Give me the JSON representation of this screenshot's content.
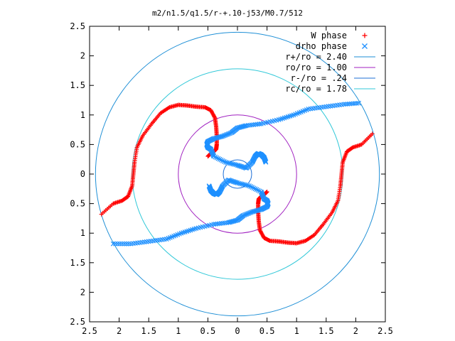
{
  "chart_data": {
    "type": "scatter",
    "title": "m2/n1.5/q1.5/r-+.10-j53/M0.7/512",
    "xlabel": "",
    "ylabel": "",
    "xlim": [
      -2.5,
      2.5
    ],
    "ylim": [
      -2.5,
      2.5
    ],
    "x_ticks": [
      -2.5,
      -2,
      -1.5,
      -1,
      -0.5,
      0,
      0.5,
      1,
      1.5,
      2,
      2.5
    ],
    "y_ticks": [
      -2.5,
      -2,
      -1.5,
      -1,
      -0.5,
      0,
      0.5,
      1,
      1.5,
      2,
      2.5
    ],
    "x_tick_labels": [
      "2.5",
      "2",
      "1.5",
      "1",
      "0.5",
      "0",
      "0.5",
      "1",
      "1.5",
      "2",
      "2.5"
    ],
    "y_tick_labels": [
      "2.5",
      "2",
      "1.5",
      "1",
      "0.5",
      "0",
      "0.5",
      "1",
      "1.5",
      "2",
      "2.5"
    ],
    "grid": false,
    "legend_position": "top-right",
    "series": [
      {
        "name": "W phase",
        "kind": "points",
        "marker": "+",
        "color": "#ff0000",
        "branches": [
          {
            "x": [
              2.28,
              2.1,
              1.95,
              1.85,
              1.78,
              1.76,
              1.74,
              1.7,
              1.6,
              1.45,
              1.3,
              1.15,
              1.0,
              0.85,
              0.7,
              0.55,
              0.45,
              0.38,
              0.36,
              0.35,
              0.35,
              0.36,
              0.4,
              0.45,
              0.5
            ],
            "y": [
              0.68,
              0.5,
              0.45,
              0.38,
              0.2,
              0.0,
              -0.2,
              -0.45,
              -0.65,
              -0.85,
              -1.03,
              -1.13,
              -1.17,
              -1.16,
              -1.14,
              -1.13,
              -1.08,
              -0.95,
              -0.8,
              -0.65,
              -0.5,
              -0.42,
              -0.38,
              -0.35,
              -0.3
            ]
          },
          {
            "x": [
              -2.3,
              -2.1,
              -1.95,
              -1.85,
              -1.78,
              -1.76,
              -1.74,
              -1.7,
              -1.6,
              -1.45,
              -1.3,
              -1.15,
              -1.0,
              -0.85,
              -0.7,
              -0.55,
              -0.45,
              -0.38,
              -0.36,
              -0.35,
              -0.35,
              -0.36,
              -0.4,
              -0.45,
              -0.5
            ],
            "y": [
              -0.68,
              -0.5,
              -0.45,
              -0.38,
              -0.2,
              0.0,
              0.2,
              0.45,
              0.65,
              0.85,
              1.03,
              1.13,
              1.17,
              1.16,
              1.14,
              1.13,
              1.08,
              0.95,
              0.8,
              0.65,
              0.5,
              0.42,
              0.38,
              0.35,
              0.3
            ]
          }
        ]
      },
      {
        "name": "drho phase",
        "kind": "points",
        "marker": "x",
        "color": "#1e90ff",
        "branches": [
          {
            "x": [
              2.05,
              1.8,
              1.5,
              1.2,
              0.95,
              0.7,
              0.4,
              0.15,
              0.0,
              -0.1,
              -0.25,
              -0.4,
              -0.5,
              -0.52,
              -0.5,
              -0.45,
              -0.4,
              -0.2,
              0.0,
              0.15,
              0.25,
              0.3,
              0.35,
              0.4,
              0.45,
              0.48
            ],
            "y": [
              1.2,
              1.18,
              1.14,
              1.1,
              1.0,
              0.92,
              0.85,
              0.82,
              0.78,
              0.7,
              0.64,
              0.6,
              0.55,
              0.5,
              0.45,
              0.42,
              0.3,
              0.2,
              0.15,
              0.1,
              0.2,
              0.3,
              0.35,
              0.33,
              0.28,
              0.2
            ]
          },
          {
            "x": [
              -2.1,
              -1.8,
              -1.5,
              -1.2,
              -0.95,
              -0.7,
              -0.4,
              -0.15,
              0.0,
              0.1,
              0.25,
              0.4,
              0.5,
              0.52,
              0.5,
              0.45,
              0.4,
              0.2,
              0.0,
              -0.15,
              -0.25,
              -0.3,
              -0.35,
              -0.4,
              -0.45,
              -0.48
            ],
            "y": [
              -1.18,
              -1.18,
              -1.14,
              -1.1,
              -1.0,
              -0.92,
              -0.85,
              -0.82,
              -0.78,
              -0.7,
              -0.64,
              -0.6,
              -0.55,
              -0.5,
              -0.45,
              -0.42,
              -0.3,
              -0.2,
              -0.15,
              -0.1,
              -0.2,
              -0.3,
              -0.35,
              -0.33,
              -0.28,
              -0.2
            ]
          }
        ]
      },
      {
        "name": "r+/ro = 2.40",
        "kind": "circle",
        "radius": 2.4,
        "color": "#1e8fd6"
      },
      {
        "name": "ro/ro = 1.00",
        "kind": "circle",
        "radius": 1.0,
        "color": "#a020c0"
      },
      {
        "name": "r-/ro = .24",
        "kind": "circle",
        "radius": 0.24,
        "color": "#1e6fd6"
      },
      {
        "name": "rc/ro = 1.78",
        "kind": "circle",
        "radius": 1.78,
        "color": "#30c8d8"
      }
    ]
  }
}
